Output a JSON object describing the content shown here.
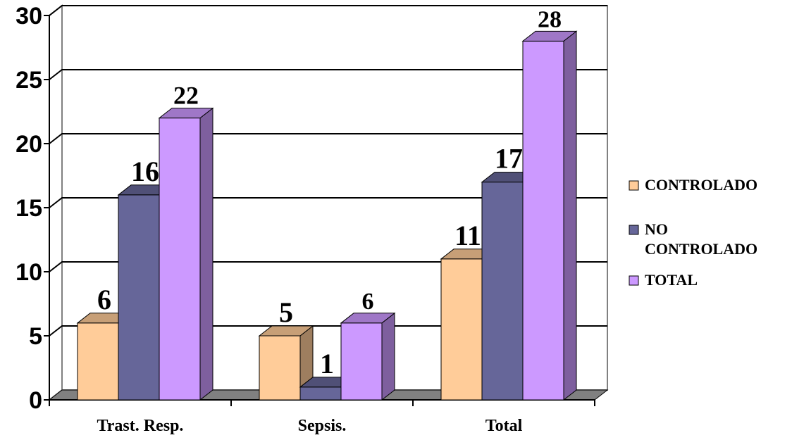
{
  "chart_data": {
    "type": "bar",
    "three_d": true,
    "categories": [
      "Trast. Resp.",
      "Sepsis.",
      "Total"
    ],
    "series": [
      {
        "name": "CONTROLADO",
        "values": [
          6,
          5,
          11
        ],
        "color": "#FFCC99"
      },
      {
        "name": "NO CONTROLADO",
        "values": [
          16,
          1,
          17
        ],
        "color": "#666699"
      },
      {
        "name": "TOTAL",
        "values": [
          22,
          6,
          28
        ],
        "color": "#CC99FF"
      }
    ],
    "legend_lines": [
      [
        "CONTROLADO"
      ],
      [
        "NO",
        "CONTROLADO"
      ],
      [
        "TOTAL"
      ]
    ],
    "title": "",
    "xlabel": "",
    "ylabel": "",
    "ylim": [
      0,
      30
    ],
    "yticks": [
      0,
      5,
      10,
      15,
      20,
      25,
      30
    ],
    "grid": true,
    "legend_position": "right"
  }
}
